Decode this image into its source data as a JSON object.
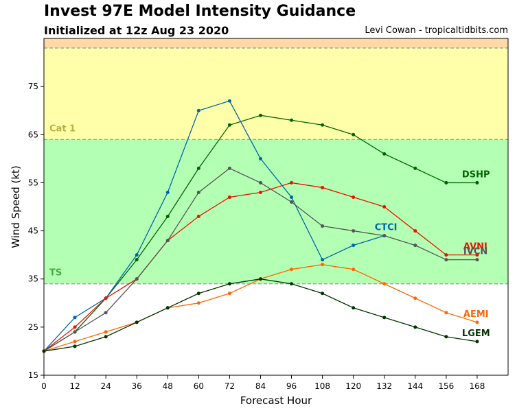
{
  "header": {
    "title": "Invest 97E Model Intensity Guidance",
    "subtitle": "Initialized at 12z Aug 23 2020",
    "credit": "Levi Cowan - tropicaltidbits.com"
  },
  "chart_data": {
    "type": "line",
    "xlabel": "Forecast Hour",
    "ylabel": "Wind Speed (kt)",
    "xlim": [
      0,
      180
    ],
    "ylim": [
      15,
      85
    ],
    "xticks": [
      0,
      12,
      24,
      36,
      48,
      60,
      72,
      84,
      96,
      108,
      120,
      132,
      144,
      156,
      168
    ],
    "yticks": [
      15,
      25,
      35,
      45,
      55,
      65,
      75
    ],
    "bands": [
      {
        "label": "",
        "from": 83,
        "to": 85,
        "color": "#ffd9a8"
      },
      {
        "label": "Cat 1",
        "from": 64,
        "to": 83,
        "color": "#ffffaa",
        "label_color": "#b8b040"
      },
      {
        "label": "TS",
        "from": 34,
        "to": 64,
        "color": "#b3ffb3",
        "label_color": "#44aa44"
      }
    ],
    "series": [
      {
        "name": "DSHP",
        "color": "#006400",
        "x": [
          0,
          12,
          24,
          36,
          48,
          60,
          72,
          84,
          96,
          108,
          120,
          132,
          144,
          156,
          168
        ],
        "y": [
          20,
          24,
          31,
          39,
          48,
          58,
          67,
          69,
          68,
          67,
          65,
          61,
          58,
          55,
          55
        ]
      },
      {
        "name": "CTCI",
        "color": "#0066aa",
        "x": [
          0,
          12,
          24,
          36,
          48,
          60,
          72,
          84,
          96,
          108,
          120,
          132
        ],
        "y": [
          20,
          27,
          31,
          40,
          53,
          70,
          72,
          60,
          52,
          39,
          42,
          44
        ]
      },
      {
        "name": "AVNI",
        "color": "#ee1100",
        "x": [
          0,
          12,
          24,
          36,
          48,
          60,
          72,
          84,
          96,
          108,
          120,
          132,
          144,
          156,
          168
        ],
        "y": [
          20,
          25,
          31,
          35,
          43,
          48,
          52,
          53,
          55,
          54,
          52,
          50,
          45,
          40,
          40
        ]
      },
      {
        "name": "IVCN",
        "color": "#555555",
        "x": [
          0,
          12,
          24,
          36,
          48,
          60,
          72,
          84,
          96,
          108,
          120,
          132,
          144,
          156,
          168
        ],
        "y": [
          20,
          24,
          28,
          35,
          43,
          53,
          58,
          55,
          51,
          46,
          45,
          44,
          42,
          39,
          39
        ]
      },
      {
        "name": "AEMI",
        "color": "#ff6600",
        "x": [
          0,
          12,
          24,
          36,
          48,
          60,
          72,
          84,
          96,
          108,
          120,
          132,
          144,
          156,
          168
        ],
        "y": [
          20,
          22,
          24,
          26,
          29,
          30,
          32,
          35,
          37,
          38,
          37,
          34,
          31,
          28,
          26
        ]
      },
      {
        "name": "LGEM",
        "color": "#003300",
        "x": [
          0,
          12,
          24,
          36,
          48,
          60,
          72,
          84,
          96,
          108,
          120,
          132,
          144,
          156,
          168
        ],
        "y": [
          20,
          21,
          23,
          26,
          29,
          32,
          34,
          35,
          34,
          32,
          29,
          27,
          25,
          23,
          22
        ]
      }
    ]
  }
}
